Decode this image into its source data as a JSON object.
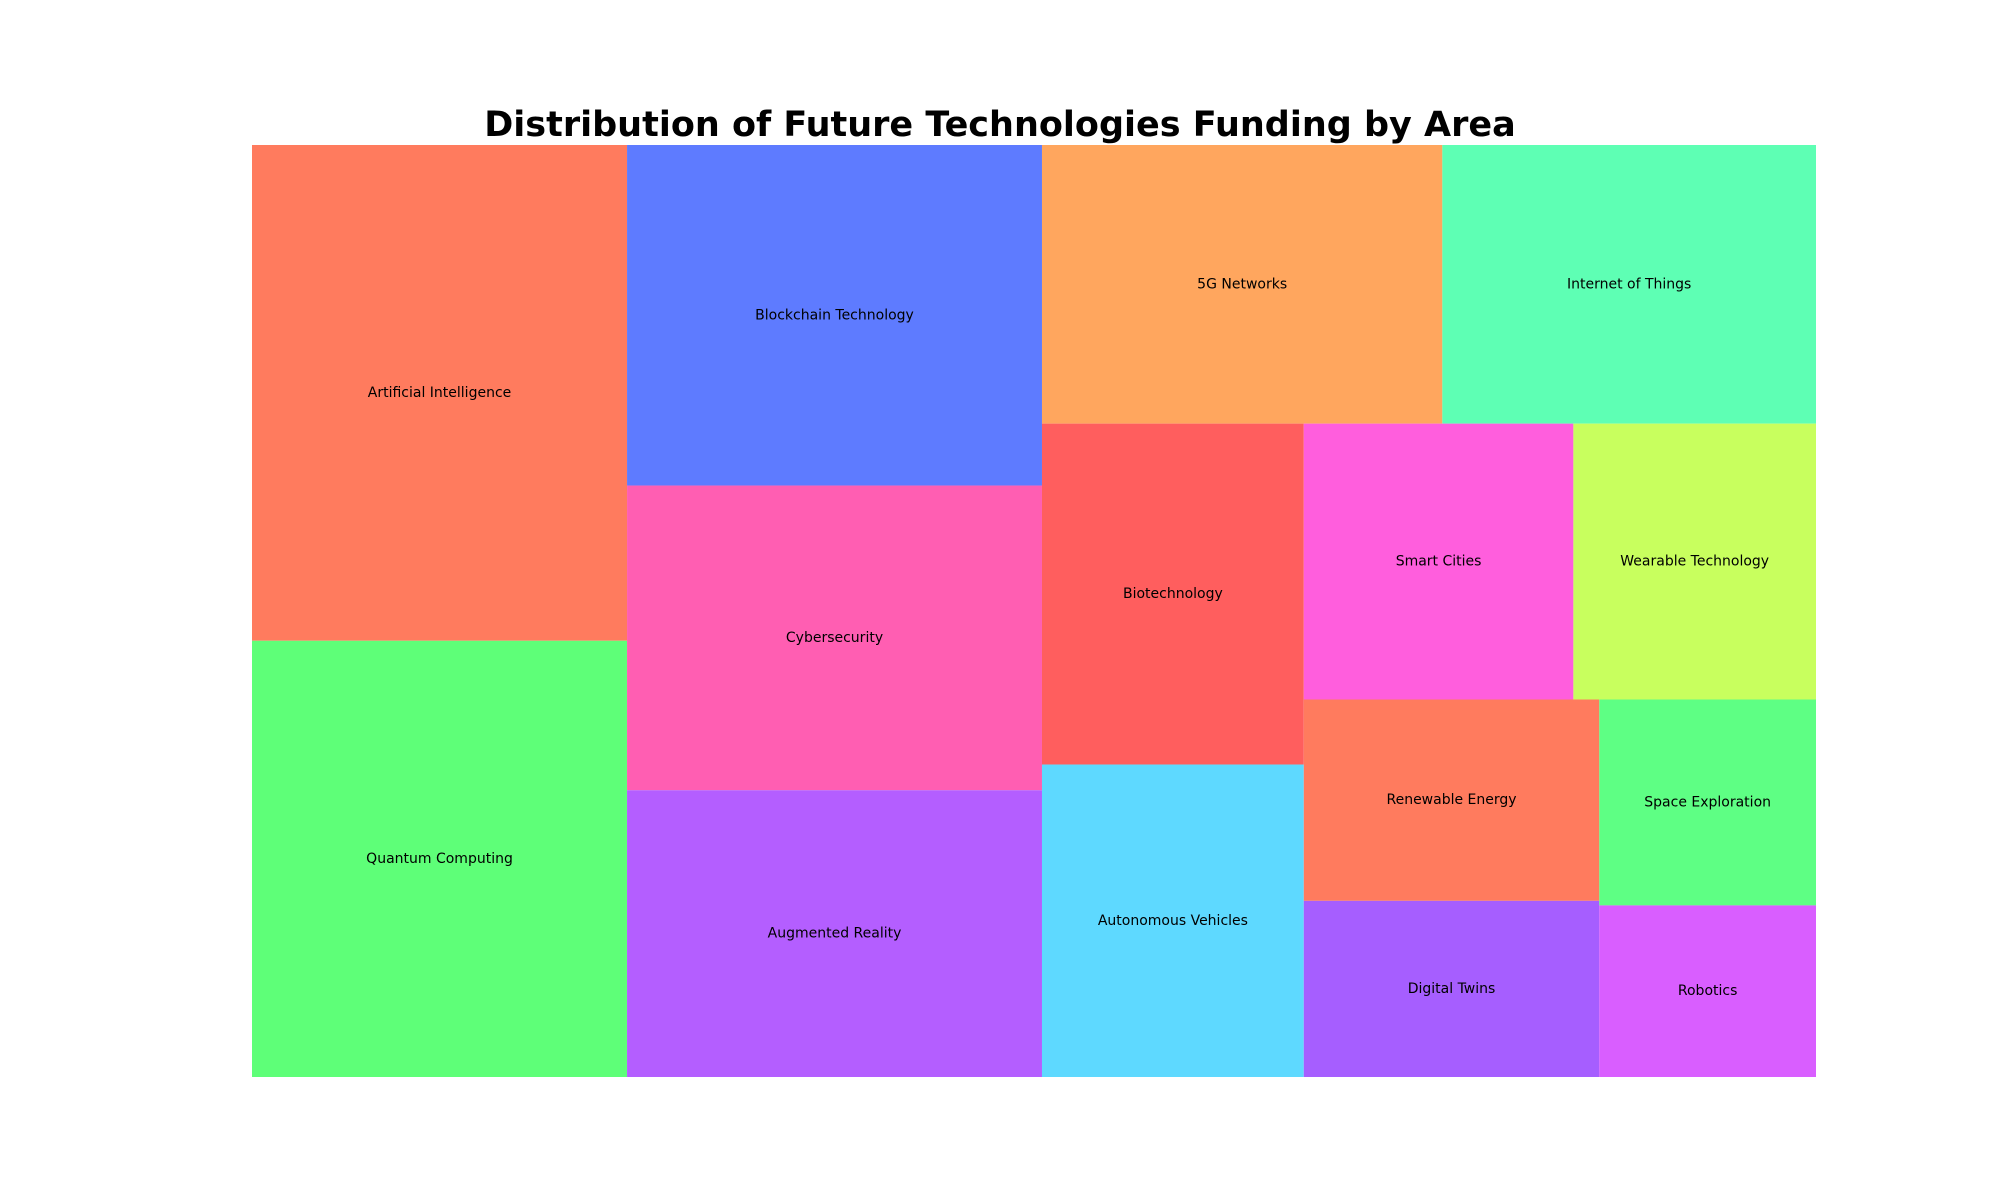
{
  "chart_data": {
    "type": "treemap",
    "title": "Distribution of Future Technologies Funding by Area",
    "items": [
      {
        "label": "Artificial Intelligence",
        "value": 25,
        "color": "#FF7B5E"
      },
      {
        "label": "Quantum Computing",
        "value": 22,
        "color": "#5EFF78"
      },
      {
        "label": "Blockchain Technology",
        "value": 19,
        "color": "#5E7BFF"
      },
      {
        "label": "Cybersecurity",
        "value": 17,
        "color": "#FF5EB2"
      },
      {
        "label": "Augmented Reality",
        "value": 16,
        "color": "#B45EFF"
      },
      {
        "label": "5G Networks",
        "value": 15,
        "color": "#FFA65E"
      },
      {
        "label": "Internet of Things",
        "value": 14,
        "color": "#5EFFB4"
      },
      {
        "label": "Biotechnology",
        "value": 12,
        "color": "#FF5E5E"
      },
      {
        "label": "Autonomous Vehicles",
        "value": 11,
        "color": "#5ED9FF"
      },
      {
        "label": "Smart Cities",
        "value": 10,
        "color": "#FF5EDD"
      },
      {
        "label": "Wearable Technology",
        "value": 9,
        "color": "#C8FF5E"
      },
      {
        "label": "Renewable Energy",
        "value": 8,
        "color": "#FF7B5E"
      },
      {
        "label": "Digital Twins",
        "value": 7,
        "color": "#A65EFF"
      },
      {
        "label": "Space Exploration",
        "value": 6,
        "color": "#5EFF84"
      },
      {
        "label": "Robotics",
        "value": 5,
        "color": "#D95EFF"
      }
    ]
  }
}
